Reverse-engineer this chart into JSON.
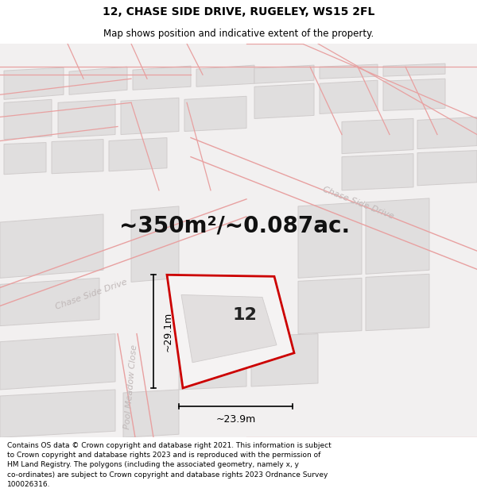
{
  "title": "12, CHASE SIDE DRIVE, RUGELEY, WS15 2FL",
  "subtitle": "Map shows position and indicative extent of the property.",
  "area_text": "~350m²/~0.087ac.",
  "property_number": "12",
  "dim_width": "~23.9m",
  "dim_height": "~29.1m",
  "footer": "Contains OS data © Crown copyright and database right 2021. This information is subject\nto Crown copyright and database rights 2023 and is reproduced with the permission of\nHM Land Registry. The polygons (including the associated geometry, namely x, y\nco-ordinates) are subject to Crown copyright and database rights 2023 Ordnance Survey\n100026316.",
  "map_bg": "#f2f0f0",
  "road_color": "#f0c8c8",
  "road_outline": "#e8a0a0",
  "block_color": "#e0dede",
  "block_edge": "#d0cccc",
  "property_outline": "#cc0000",
  "property_fill": "#f5f3f3",
  "street_label_color": "#c0b8b8",
  "title_fontsize": 10,
  "subtitle_fontsize": 8.5,
  "area_fontsize": 20,
  "footer_fontsize": 6.5,
  "road_label_fontsize": 8,
  "property_label_fontsize": 16,
  "dim_fontsize": 9
}
